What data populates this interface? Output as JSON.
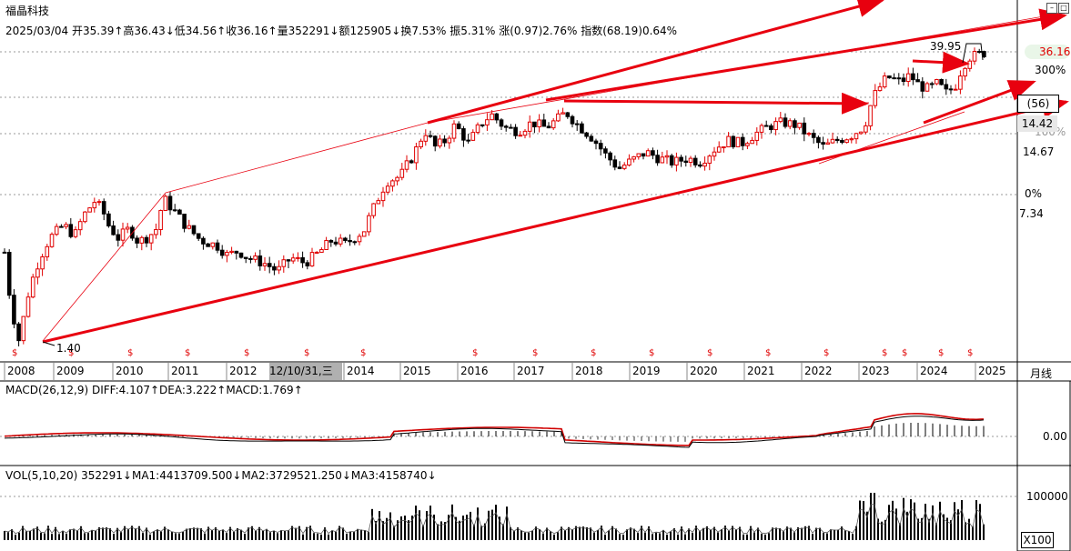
{
  "stock": {
    "name": "福晶科技",
    "info_line": "2025/03/04 开35.39↑高36.43↓低34.56↑收36.16↑量352291↓额125905↓换7.53% 振5.31% 涨(0.97)2.76% 指数(68.19)0.64%"
  },
  "price_axis": {
    "current": "36.16",
    "labels": [
      "300%",
      "14.67",
      "0%",
      "7.34"
    ],
    "box_a": "(56)",
    "box_b": "14.42",
    "partial_label": "100%"
  },
  "annotations": {
    "high_label": "39.95",
    "low_label": "1.40",
    "dividend_marker": "$"
  },
  "time_axis": {
    "years": [
      "2008",
      "2009",
      "2010",
      "2011",
      "2012",
      "2014",
      "2015",
      "2016",
      "2017",
      "2018",
      "2019",
      "2020",
      "2021",
      "2022",
      "2023",
      "2024",
      "2025"
    ],
    "cursor_label": "12/10/31,三",
    "period": "月线"
  },
  "macd": {
    "title": "MACD(26,12,9) DIFF:4.107↑DEA:3.222↑MACD:1.769↑",
    "axis_label": "0.00"
  },
  "volume": {
    "title": "VOL(5,10,20) 352291↓MA1:4413709.500↓MA2:3729521.250↓MA3:4158740↓",
    "axis_label": "100000",
    "unit": "X100"
  },
  "chart_data": [
    {
      "type": "candlestick",
      "title": "福晶科技",
      "frequency": "monthly",
      "x_range": [
        "2008",
        "2025"
      ],
      "price_range": [
        1.4,
        39.95
      ],
      "scale": "log",
      "high": 39.95,
      "low": 1.4,
      "last_close": 36.16,
      "ohlc_2025_03": {
        "open": 35.39,
        "high": 36.43,
        "low": 34.56,
        "close": 36.16
      }
    },
    {
      "type": "line",
      "title": "MACD(26,12,9)",
      "series": [
        {
          "name": "DIFF",
          "last": 4.107
        },
        {
          "name": "DEA",
          "last": 3.222
        },
        {
          "name": "MACD",
          "last": 1.769
        }
      ]
    },
    {
      "type": "bar",
      "title": "VOL(5,10,20)",
      "series": [
        {
          "name": "VOL",
          "last": 352291
        },
        {
          "name": "MA1",
          "last": 4413709.5
        },
        {
          "name": "MA2",
          "last": 3729521.25
        },
        {
          "name": "MA3",
          "last": 4158740
        }
      ]
    }
  ],
  "colors": {
    "up": "#e00000",
    "down": "#000000",
    "trend": "#e8000f",
    "grid": "#9a9a9a"
  }
}
